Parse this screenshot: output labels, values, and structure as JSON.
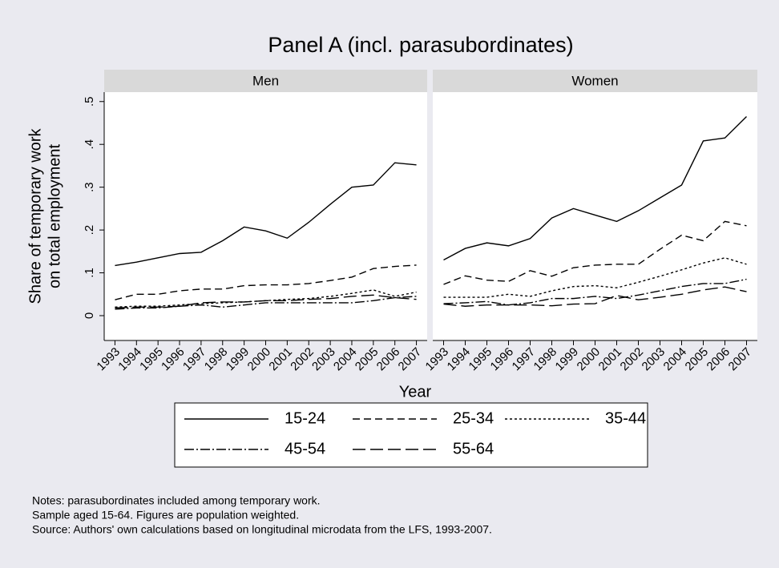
{
  "title": "Panel A (incl. parasubordinates)",
  "x_label": "Year",
  "y_label": [
    "Share of temporary work",
    "on total employment"
  ],
  "notes": [
    "Notes: parasubordinates included among temporary work.",
    "Sample aged 15-64. Figures are population weighted.",
    "Source: Authors' own calculations based on longitudinal microdata from the LFS, 1993-2007."
  ],
  "chart_data": [
    {
      "type": "line",
      "title": "Men",
      "x": [
        1993,
        1994,
        1995,
        1996,
        1997,
        1998,
        1999,
        2000,
        2001,
        2002,
        2003,
        2004,
        2005,
        2006,
        2007
      ],
      "xlim": [
        1992.5,
        2007.5
      ],
      "ylim": [
        -0.058,
        0.522
      ],
      "xticks": [
        1993,
        1994,
        1995,
        1996,
        1997,
        1998,
        1999,
        2000,
        2001,
        2002,
        2003,
        2004,
        2005,
        2006,
        2007
      ],
      "yticks": [
        0,
        {
          "value": 0.1,
          "label": ".1"
        },
        {
          "value": 0.2,
          "label": ".2"
        },
        {
          "value": 0.3,
          "label": ".3"
        },
        {
          "value": 0.4,
          "label": ".4"
        },
        {
          "value": 0.5,
          "label": ".5"
        }
      ],
      "series": [
        {
          "name": "15-24",
          "color": "#000000",
          "dash": "solid",
          "values": [
            0.117,
            0.125,
            0.135,
            0.145,
            0.148,
            0.175,
            0.207,
            0.198,
            0.181,
            0.218,
            0.26,
            0.3,
            0.305,
            0.357,
            0.352
          ]
        },
        {
          "name": "25-34",
          "color": "#000000",
          "dash": "dash",
          "values": [
            0.037,
            0.05,
            0.05,
            0.058,
            0.062,
            0.062,
            0.07,
            0.072,
            0.072,
            0.075,
            0.082,
            0.09,
            0.11,
            0.115,
            0.118
          ]
        },
        {
          "name": "35-44",
          "color": "#000000",
          "dash": "shortdash",
          "values": [
            0.02,
            0.022,
            0.022,
            0.025,
            0.028,
            0.03,
            0.032,
            0.035,
            0.038,
            0.04,
            0.045,
            0.052,
            0.06,
            0.045,
            0.055
          ]
        },
        {
          "name": "45-54",
          "color": "#000000",
          "dash": "dash_dot",
          "values": [
            0.015,
            0.018,
            0.018,
            0.022,
            0.025,
            0.02,
            0.025,
            0.03,
            0.03,
            0.03,
            0.03,
            0.03,
            0.035,
            0.042,
            0.045
          ]
        },
        {
          "name": "55-64",
          "color": "#000000",
          "dash": "longdash",
          "values": [
            0.018,
            0.02,
            0.02,
            0.022,
            0.03,
            0.032,
            0.032,
            0.035,
            0.035,
            0.038,
            0.04,
            0.045,
            0.048,
            0.042,
            0.038
          ]
        }
      ]
    },
    {
      "type": "line",
      "title": "Women",
      "x": [
        1993,
        1994,
        1995,
        1996,
        1997,
        1998,
        1999,
        2000,
        2001,
        2002,
        2003,
        2004,
        2005,
        2006,
        2007
      ],
      "xlim": [
        1992.5,
        2007.5
      ],
      "ylim": [
        -0.058,
        0.522
      ],
      "xticks": [
        1993,
        1994,
        1995,
        1996,
        1997,
        1998,
        1999,
        2000,
        2001,
        2002,
        2003,
        2004,
        2005,
        2006,
        2007
      ],
      "series": [
        {
          "color": "#000000",
          "dash": "solid",
          "values": [
            0.13,
            0.157,
            0.17,
            0.163,
            0.18,
            0.228,
            0.25,
            0.235,
            0.22,
            0.245,
            0.275,
            0.305,
            0.408,
            0.415,
            0.465
          ]
        },
        {
          "color": "#000000",
          "dash": "dash",
          "values": [
            0.073,
            0.093,
            0.083,
            0.08,
            0.105,
            0.092,
            0.112,
            0.118,
            0.12,
            0.12,
            0.155,
            0.188,
            0.175,
            0.22,
            0.21
          ]
        },
        {
          "color": "#000000",
          "dash": "shortdash",
          "values": [
            0.043,
            0.043,
            0.043,
            0.05,
            0.045,
            0.058,
            0.068,
            0.07,
            0.065,
            0.078,
            0.092,
            0.107,
            0.123,
            0.135,
            0.12
          ]
        },
        {
          "color": "#000000",
          "dash": "dash_dot",
          "values": [
            0.028,
            0.03,
            0.033,
            0.025,
            0.03,
            0.04,
            0.04,
            0.045,
            0.04,
            0.048,
            0.058,
            0.068,
            0.075,
            0.075,
            0.085
          ]
        },
        {
          "color": "#000000",
          "dash": "longdash",
          "values": [
            0.027,
            0.022,
            0.025,
            0.025,
            0.025,
            0.023,
            0.027,
            0.028,
            0.047,
            0.037,
            0.043,
            0.05,
            0.06,
            0.067,
            0.056
          ]
        }
      ]
    }
  ]
}
